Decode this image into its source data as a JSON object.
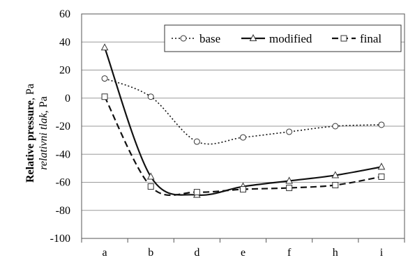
{
  "chart_data": {
    "type": "line",
    "categories": [
      "a",
      "b",
      "d",
      "e",
      "f",
      "h",
      "i"
    ],
    "ylim": [
      -100,
      60
    ],
    "yticks": [
      "60",
      "40",
      "20",
      "0",
      "-20",
      "-40",
      "-60",
      "-80",
      "-100"
    ],
    "ylabel_main": "Relative pressure",
    "ylabel_main_unit": ", Pa",
    "ylabel_sub": "relativni tlak",
    "ylabel_sub_unit": ", Pa",
    "grid": true,
    "legend_position": "top-right",
    "series": [
      {
        "name": "base",
        "marker": "circle",
        "line_style": "dotted",
        "values": [
          14,
          1,
          -31,
          -28,
          -24,
          -20,
          -19
        ]
      },
      {
        "name": "modified",
        "marker": "triangle",
        "line_style": "solid",
        "values": [
          36,
          -56,
          -69,
          -63,
          -59,
          -55,
          -49
        ]
      },
      {
        "name": "final",
        "marker": "square",
        "line_style": "dashed",
        "values": [
          1,
          -63,
          -67,
          -65,
          -64,
          -62,
          -56
        ]
      }
    ]
  }
}
